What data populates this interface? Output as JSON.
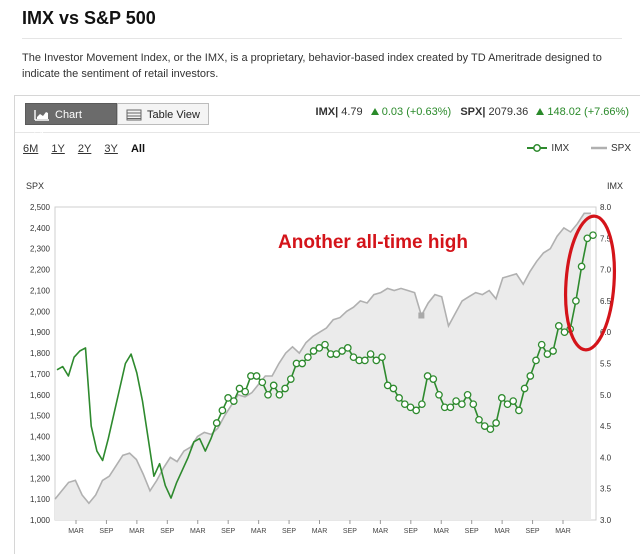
{
  "page": {
    "title": "IMX vs S&P 500",
    "description": "The Investor Movement Index, or the IMX, is a proprietary, behavior-based index created by TD Ameritrade designed to indicate the sentiment of retail investors."
  },
  "toolbar": {
    "chart_view_label": "Chart View",
    "table_view_label": "Table View"
  },
  "quotes": {
    "imx_label": "IMX|",
    "imx_value": "4.79",
    "imx_change": "0.03",
    "imx_pct": "(+0.63%)",
    "spx_label": "SPX|",
    "spx_value": "2079.36",
    "spx_change": "148.02",
    "spx_pct": "(+7.66%)"
  },
  "ranges": [
    "6M",
    "1Y",
    "2Y",
    "3Y",
    "All"
  ],
  "active_range": "All",
  "legend": {
    "imx": "IMX",
    "spx": "SPX"
  },
  "colors": {
    "imx": "#2e8a2e",
    "spx": "#b0b0b0",
    "spx_fill": "#ebebeb",
    "annotation": "#d4141a",
    "positive": "#2a8a2a"
  },
  "chart_data": {
    "type": "line",
    "left_axis_label": "SPX",
    "right_axis_label": "IMX",
    "left_ylim": [
      1000,
      2500
    ],
    "right_ylim": [
      3.0,
      8.0
    ],
    "left_ticks": [
      "2,500",
      "2,400",
      "2,300",
      "2,200",
      "2,100",
      "2,000",
      "1,900",
      "1,800",
      "1,700",
      "1,600",
      "1,500",
      "1,400",
      "1,300",
      "1,200",
      "1,100",
      "1,000"
    ],
    "right_ticks": [
      "8.0",
      "7.5",
      "7.0",
      "6.5",
      "6.0",
      "5.5",
      "5.0",
      "4.5",
      "4.0",
      "3.5",
      "3.0"
    ],
    "x_ticks": [
      "MAR",
      "SEP",
      "MAR",
      "SEP",
      "MAR",
      "SEP",
      "MAR",
      "SEP",
      "MAR",
      "SEP",
      "MAR",
      "SEP",
      "MAR",
      "SEP",
      "MAR",
      "SEP",
      "MAR"
    ],
    "annotation": "Another all-time high",
    "series": [
      {
        "name": "SPX",
        "axis": "left",
        "values": [
          1100,
          1140,
          1180,
          1190,
          1120,
          1080,
          1120,
          1190,
          1210,
          1260,
          1310,
          1320,
          1290,
          1220,
          1140,
          1190,
          1250,
          1300,
          1280,
          1330,
          1350,
          1400,
          1420,
          1410,
          1440,
          1500,
          1550,
          1600,
          1590,
          1610,
          1650,
          1690,
          1690,
          1750,
          1800,
          1830,
          1800,
          1850,
          1880,
          1900,
          1920,
          1960,
          1970,
          2000,
          2020,
          2050,
          2040,
          2080,
          2090,
          2110,
          2100,
          2110,
          2100,
          2090,
          1980,
          2040,
          2080,
          2070,
          1930,
          1990,
          2050,
          2070,
          2090,
          2080,
          2100,
          2060,
          2160,
          2170,
          2180,
          2130,
          2190,
          2240,
          2280,
          2300,
          2360,
          2400,
          2380,
          2420,
          2470,
          2470
        ]
      },
      {
        "name": "IMX",
        "axis": "right",
        "values": [
          5.4,
          5.45,
          5.3,
          5.6,
          5.7,
          5.75,
          4.5,
          4.1,
          3.95,
          4.3,
          4.7,
          5.1,
          5.5,
          5.65,
          5.35,
          4.9,
          4.3,
          3.7,
          3.9,
          3.55,
          3.35,
          3.6,
          3.8,
          4.0,
          4.25,
          4.3,
          4.1,
          4.3,
          4.55,
          4.75,
          4.95,
          4.9,
          5.1,
          5.05,
          5.3,
          5.3,
          5.2,
          5.0,
          5.15,
          5.0,
          5.1,
          5.25,
          5.5,
          5.5,
          5.6,
          5.7,
          5.75,
          5.8,
          5.65,
          5.65,
          5.7,
          5.75,
          5.6,
          5.55,
          5.55,
          5.65,
          5.55,
          5.6,
          5.15,
          5.1,
          4.95,
          4.85,
          4.8,
          4.75,
          4.85,
          5.3,
          5.25,
          5.0,
          4.8,
          4.8,
          4.9,
          4.85,
          5.0,
          4.85,
          4.6,
          4.5,
          4.45,
          4.55,
          4.95,
          4.85,
          4.9,
          4.75,
          5.1,
          5.3,
          5.55,
          5.8,
          5.65,
          5.7,
          6.1,
          6.0,
          6.05,
          6.5,
          7.05,
          7.5,
          7.55
        ]
      }
    ]
  }
}
